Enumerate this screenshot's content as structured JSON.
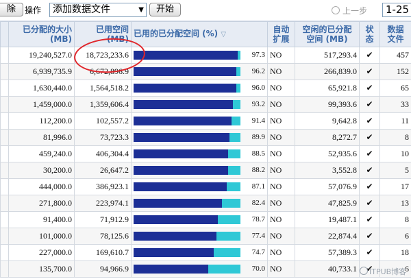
{
  "toolbar": {
    "remove_label": "除",
    "action_label": "操作",
    "action_select_value": "添加数据文件",
    "start_label": "开始",
    "prev_label": "上一步",
    "page_range": "1-25"
  },
  "columns": {
    "allocated_size": "已分配的大小",
    "allocated_size_unit": "(MB)",
    "used_space": "已用空间",
    "used_space_unit": "(MB)",
    "used_pct": "已用的已分配空间 (%)",
    "auto_extend_1": "自动",
    "auto_extend_2": "扩展",
    "free_alloc_1": "空闲的已分配",
    "free_alloc_2": "空间 (MB)",
    "status_1": "状",
    "status_2": "态",
    "datafiles_1": "数据",
    "datafiles_2": "文件"
  },
  "rows": [
    {
      "allocated": "19,240,527.0",
      "used": "18,723,233.6",
      "pct": "97.3",
      "pct_value": 97.3,
      "auto": "NO",
      "free": "517,293.4",
      "files": "457"
    },
    {
      "allocated": "6,939,735.9",
      "used": "6,672,896.9",
      "pct": "96.2",
      "pct_value": 96.2,
      "auto": "NO",
      "free": "266,839.0",
      "files": "152"
    },
    {
      "allocated": "1,630,440.0",
      "used": "1,564,518.2",
      "pct": "96.0",
      "pct_value": 96.0,
      "auto": "NO",
      "free": "65,921.8",
      "files": "65"
    },
    {
      "allocated": "1,459,000.0",
      "used": "1,359,606.4",
      "pct": "93.2",
      "pct_value": 93.2,
      "auto": "NO",
      "free": "99,393.6",
      "files": "33"
    },
    {
      "allocated": "112,200.0",
      "used": "102,557.2",
      "pct": "91.4",
      "pct_value": 91.4,
      "auto": "NO",
      "free": "9,642.8",
      "files": "11"
    },
    {
      "allocated": "81,996.0",
      "used": "73,723.3",
      "pct": "89.9",
      "pct_value": 89.9,
      "auto": "NO",
      "free": "8,272.7",
      "files": "8"
    },
    {
      "allocated": "459,240.0",
      "used": "406,304.4",
      "pct": "88.5",
      "pct_value": 88.5,
      "auto": "NO",
      "free": "52,935.6",
      "files": "10"
    },
    {
      "allocated": "30,200.0",
      "used": "26,647.2",
      "pct": "88.2",
      "pct_value": 88.2,
      "auto": "NO",
      "free": "3,552.8",
      "files": "5"
    },
    {
      "allocated": "444,000.0",
      "used": "386,923.1",
      "pct": "87.1",
      "pct_value": 87.1,
      "auto": "NO",
      "free": "57,076.9",
      "files": "17"
    },
    {
      "allocated": "271,800.0",
      "used": "223,974.1",
      "pct": "82.4",
      "pct_value": 82.4,
      "auto": "NO",
      "free": "47,825.9",
      "files": "13"
    },
    {
      "allocated": "91,400.0",
      "used": "71,912.9",
      "pct": "78.7",
      "pct_value": 78.7,
      "auto": "NO",
      "free": "19,487.1",
      "files": "8"
    },
    {
      "allocated": "101,000.0",
      "used": "78,125.6",
      "pct": "77.4",
      "pct_value": 77.4,
      "auto": "NO",
      "free": "22,874.4",
      "files": "6"
    },
    {
      "allocated": "227,000.0",
      "used": "169,610.7",
      "pct": "74.7",
      "pct_value": 74.7,
      "auto": "NO",
      "free": "57,389.3",
      "files": "18"
    },
    {
      "allocated": "135,700.0",
      "used": "94,966.9",
      "pct": "70.0",
      "pct_value": 70.0,
      "auto": "NO",
      "free": "40,733.1",
      "files": "6"
    }
  ],
  "status_icon": "check-icon",
  "colors": {
    "bar_used": "#1c2f96",
    "bar_free": "#2fc8d6",
    "header_text": "#3c6aa8",
    "highlight": "#e0262b"
  },
  "watermark": "ITPUB博客"
}
